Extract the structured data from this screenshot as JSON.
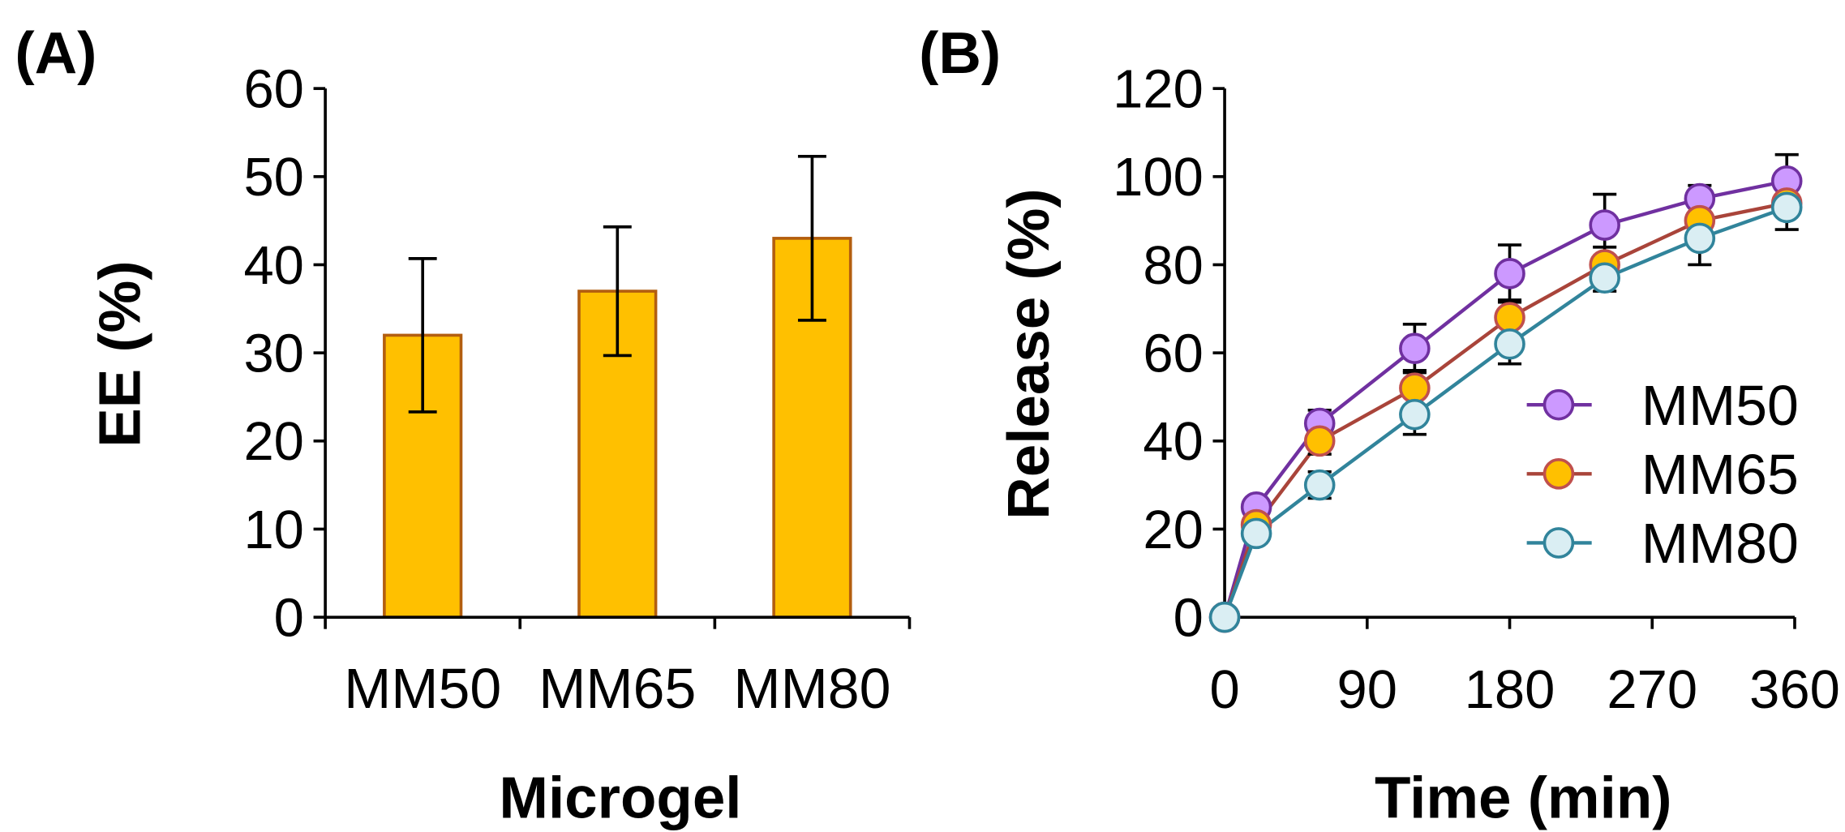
{
  "chart_data": [
    {
      "panel_label": "(A)",
      "type": "bar",
      "categories": [
        "MM50",
        "MM65",
        "MM80"
      ],
      "values": [
        32,
        37,
        43
      ],
      "errors": [
        8.7,
        7.3,
        9.3
      ],
      "xlabel": "Microgel",
      "ylabel": "EE (%)",
      "ylim": [
        0,
        60
      ],
      "yticks": [
        0,
        10,
        20,
        30,
        40,
        50,
        60
      ],
      "grid": false,
      "colors": {
        "fill": "#FFC000",
        "edge": "#B35E0F"
      }
    },
    {
      "panel_label": "(B)",
      "type": "line",
      "x": [
        0,
        20,
        60,
        120,
        180,
        240,
        300,
        355
      ],
      "xlabel": "Time (min)",
      "ylabel": "Release (%)",
      "xlim": [
        0,
        360
      ],
      "ylim": [
        0,
        120
      ],
      "xticks": [
        0,
        90,
        180,
        270,
        360
      ],
      "yticks": [
        0,
        20,
        40,
        60,
        80,
        100,
        120
      ],
      "grid": false,
      "legend": "right",
      "series": [
        {
          "name": "MM50",
          "values": [
            0,
            25,
            44,
            61,
            78,
            89,
            95,
            99
          ],
          "errors": [
            0,
            2,
            3,
            5.5,
            6.5,
            7,
            3,
            6
          ],
          "line_color": "#7030A0",
          "marker_fill": "#CC99FF",
          "marker_edge": "#7030A0"
        },
        {
          "name": "MM65",
          "values": [
            0,
            21,
            40,
            52,
            68,
            80,
            90,
            94
          ],
          "errors": [
            0,
            2,
            3,
            4,
            4,
            4,
            3,
            3
          ],
          "line_color": "#A9443A",
          "marker_fill": "#FFC000",
          "marker_edge": "#C0504D"
        },
        {
          "name": "MM80",
          "values": [
            0,
            19,
            30,
            46,
            62,
            77,
            86,
            93
          ],
          "errors": [
            0,
            2,
            3,
            4.5,
            4.5,
            3,
            6,
            5
          ],
          "line_color": "#31849B",
          "marker_fill": "#DAEEF3",
          "marker_edge": "#31849B"
        }
      ]
    }
  ]
}
